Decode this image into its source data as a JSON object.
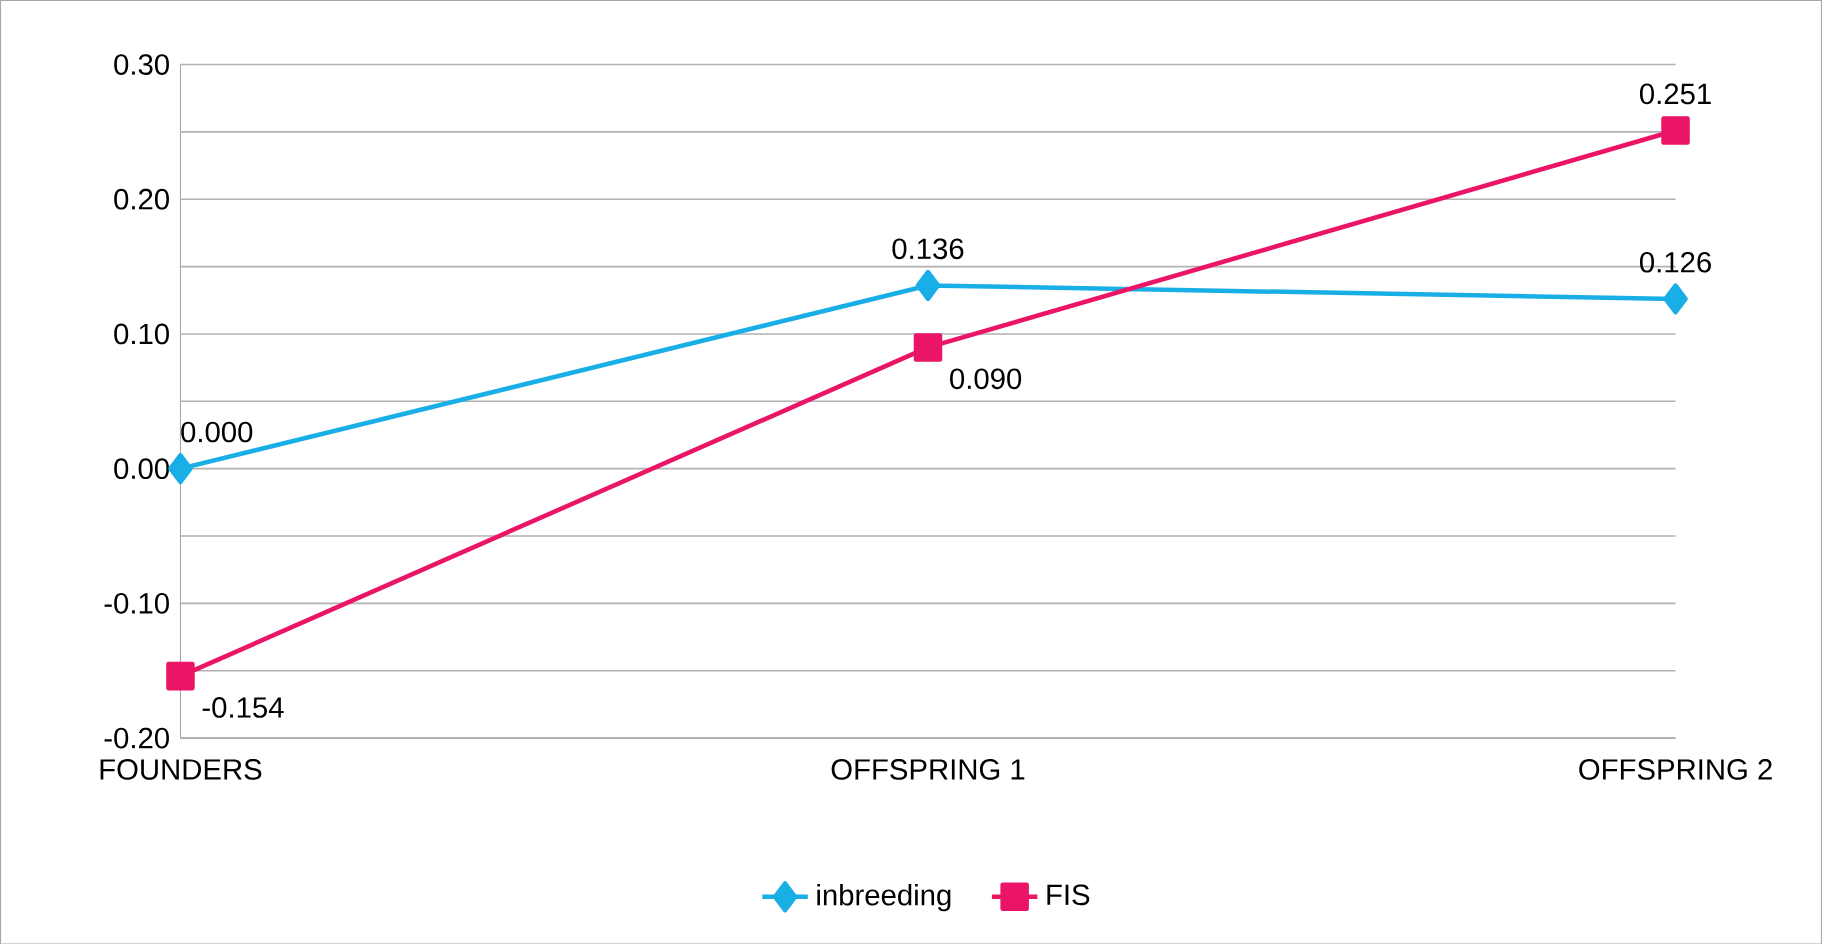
{
  "chart_data": {
    "type": "line",
    "categories": [
      "FOUNDERS",
      "OFFSPRING 1",
      "OFFSPRING 2"
    ],
    "series": [
      {
        "name": "inbreeding",
        "color": "#1aaee6",
        "marker": "diamond",
        "values": [
          0.0,
          0.136,
          0.126
        ],
        "value_labels": [
          "0.000",
          "0.136",
          "0.126"
        ]
      },
      {
        "name": "FIS",
        "color": "#ea1566",
        "marker": "square",
        "values": [
          -0.154,
          0.09,
          0.251
        ],
        "value_labels": [
          "-0.154",
          "0.090",
          "0.251"
        ]
      }
    ],
    "ylim": [
      -0.2,
      0.3
    ],
    "yticks": [
      {
        "value": -0.2,
        "label": "-0.20"
      },
      {
        "value": -0.15,
        "label": null
      },
      {
        "value": -0.1,
        "label": "-0.10"
      },
      {
        "value": -0.05,
        "label": null
      },
      {
        "value": 0,
        "label": "0.00"
      },
      {
        "value": 0.05,
        "label": null
      },
      {
        "value": 0.1,
        "label": "0.10"
      },
      {
        "value": 0.15,
        "label": null
      },
      {
        "value": 0.2,
        "label": "0.20"
      },
      {
        "value": 0.25,
        "label": null
      },
      {
        "value": 0.3,
        "label": "0.30"
      }
    ],
    "grid": true,
    "legend": "bottom",
    "line_style": "solid"
  }
}
